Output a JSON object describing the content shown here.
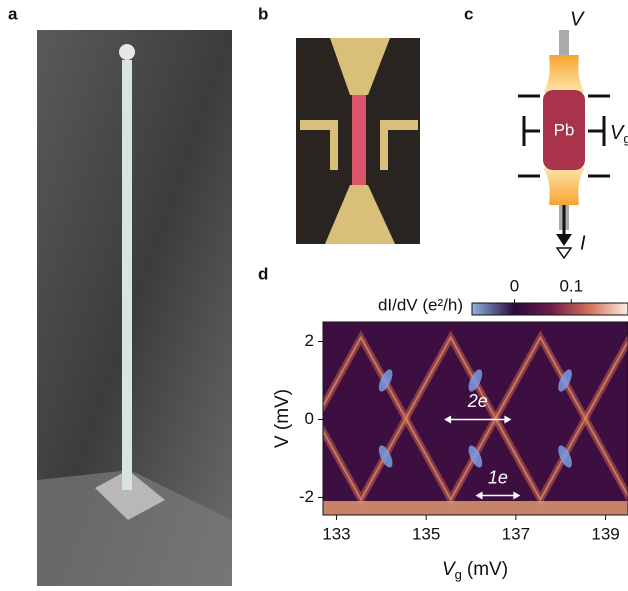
{
  "panels": {
    "a": "a",
    "b": "b",
    "c": "c",
    "d": "d"
  },
  "diagram": {
    "bias": "V",
    "island": "Pb",
    "gate": "V",
    "gate_subscript": "g",
    "current": "I"
  },
  "chart_data": {
    "type": "heatmap",
    "xlabel": {
      "symbol": "V",
      "subscript": "g",
      "unit": "(mV)"
    },
    "ylabel": "V (mV)",
    "xlim": [
      132.7,
      139.5
    ],
    "xticks": [
      133,
      135,
      137,
      139
    ],
    "ylim": [
      -2.45,
      2.5
    ],
    "yticks": [
      2,
      0,
      -2
    ],
    "colorbar": {
      "label": "dI/dV (e²/h)",
      "lim": [
        -0.075,
        0.2
      ],
      "ticks": [
        0,
        0.1
      ]
    },
    "annotations": [
      {
        "text": "2e",
        "x": [
          135.4,
          136.9
        ],
        "y": 0
      },
      {
        "text": "1e",
        "x": [
          136.1,
          137.1
        ],
        "y": -1.95
      }
    ]
  }
}
